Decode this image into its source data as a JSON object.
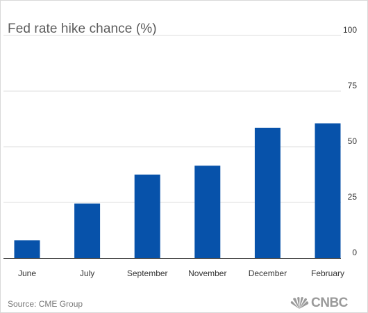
{
  "chart_data": {
    "type": "bar",
    "title": "Fed rate hike chance (%)",
    "categories": [
      "June",
      "July",
      "September",
      "November",
      "December",
      "February"
    ],
    "values": [
      8,
      24.5,
      37.5,
      41.5,
      58.5,
      60.5
    ],
    "ylim": [
      0,
      100
    ],
    "yticks": [
      0,
      25,
      50,
      75,
      100
    ],
    "y_axis_position": "right",
    "grid": true,
    "bar_color": "#0752aa",
    "source": "Source: CME Group"
  },
  "branding": {
    "logo": "CNBC",
    "logo_icon": "nbc-peacock-icon"
  }
}
